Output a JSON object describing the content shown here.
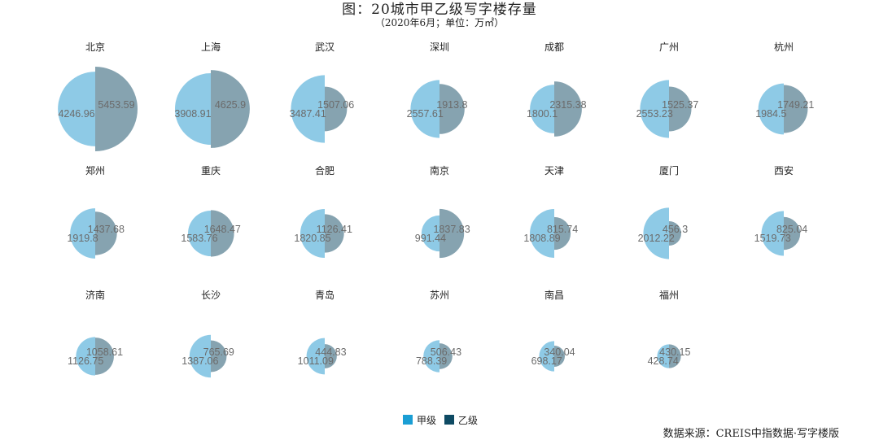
{
  "title": "图：20城市甲乙级写字楼存量",
  "subtitle": "（2020年6月；单位：万㎡）",
  "source": "数据来源：CREIS中指数据·写字楼版",
  "legend": {
    "a_label": "甲级",
    "b_label": "乙级"
  },
  "colors": {
    "grade_a": "#8ECAE6",
    "grade_b": "#86A3B0",
    "legend_a": "#1A9ED4",
    "legend_b": "#0E4A63"
  },
  "chart_data": {
    "type": "split-circle",
    "series": [
      {
        "name": "甲级",
        "values": [
          4246.96,
          3908.91,
          3487.41,
          2557.61,
          1800.1,
          2553.23,
          1984.5,
          1919.8,
          1583.76,
          1820.85,
          991.44,
          1808.89,
          2012.22,
          1519.73,
          1126.75,
          1387.06,
          1011.09,
          788.39,
          698.17,
          428.74
        ]
      },
      {
        "name": "乙级",
        "values": [
          5453.59,
          4625.9,
          1507.06,
          1913.8,
          2315.38,
          1525.37,
          1749.21,
          1437.68,
          1648.47,
          1126.41,
          1837.83,
          815.74,
          456.3,
          825.04,
          1058.61,
          765.69,
          444.83,
          506.43,
          340.04,
          430.15
        ]
      }
    ],
    "categories": [
      "北京",
      "上海",
      "武汉",
      "深圳",
      "成都",
      "广州",
      "杭州",
      "郑州",
      "重庆",
      "合肥",
      "南京",
      "天津",
      "厦门",
      "西安",
      "济南",
      "长沙",
      "青岛",
      "苏州",
      "南昌",
      "福州"
    ],
    "labels_a": [
      "4246.96",
      "3908.91",
      "3487.41",
      "2557.61",
      "1800.1",
      "2553.23",
      "1984.5",
      "1919.8",
      "1583.76",
      "1820.85",
      "991.44",
      "1808.89",
      "2012.22",
      "1519.73",
      "1126.75",
      "1387.06",
      "1011.09",
      "788.39",
      "698.17",
      "428.74"
    ],
    "labels_b": [
      "5453.59",
      "4625.9",
      "1507.06",
      "1913.8",
      "2315.38",
      "1525.37",
      "1749.21",
      "1437.68",
      "1648.47",
      "1126.41",
      "1837.83",
      "815.74",
      "456.3",
      "825.04",
      "1058.61",
      "765.69",
      "444.83",
      "506.43",
      "340.04",
      "430.15"
    ]
  }
}
